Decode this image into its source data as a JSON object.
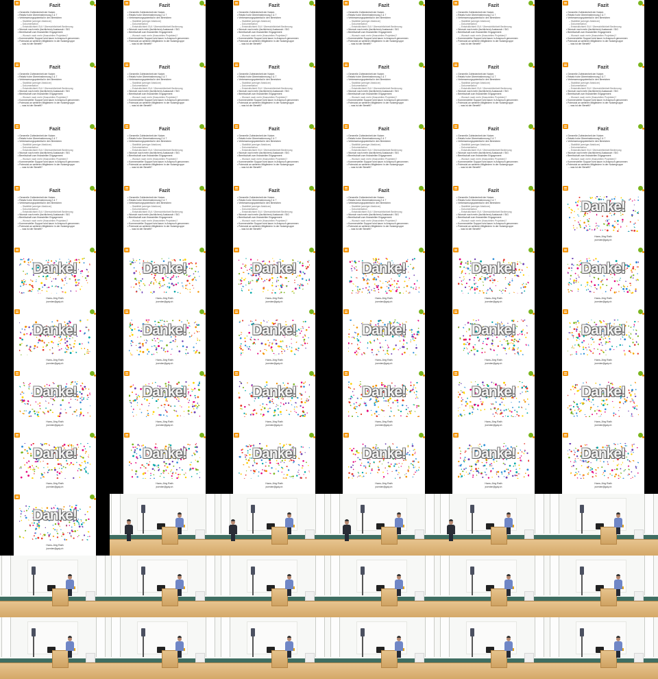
{
  "fazit_slide": {
    "title": "Fazit",
    "lines": [
      {
        "kind": "bullet",
        "text": "Generelle Zufriedenheit der Nutzer."
      },
      {
        "kind": "bullet",
        "text": "Relativ hohe Übereinstimmung 2 & 7"
      },
      {
        "kind": "bullet",
        "text": "Verbesserungspotential in den Bereichen"
      },
      {
        "kind": "sub",
        "text": "– Stabilität (weniger Abstürze)"
      },
      {
        "kind": "sub",
        "text": "– Dokumentation"
      },
      {
        "kind": "sub",
        "text": "– Entwicklichkeit GUI / Übersichtlichkeit Bedienung"
      },
      {
        "kind": "bullet",
        "text": "Wunsch nach mehr (fachlichem) Austausch / SIG"
      },
      {
        "kind": "bullet",
        "text": "Bereitschaft zum finanziellen Engagement"
      },
      {
        "kind": "sub",
        "text": "– Wunsch nach mehr (finanziellen Projekten)?"
      },
      {
        "kind": "bullet",
        "text": "Kommerzieller Support wird kaum in Anspruch genommen"
      },
      {
        "kind": "bullet",
        "text": "Potenzial an weiteren Mitgliedern in der Nutzergruppe"
      },
      {
        "kind": "arrow",
        "text": "→ was ist der Benefit?"
      }
    ]
  },
  "danke_slide": {
    "word": "Danke!",
    "name": "Hans-Jörg Rath",
    "email": "jroerden@gaiy.ch"
  },
  "colors": {
    "background": "#000000",
    "logo_orange": "#f39200",
    "logo_green": "#7ab51d",
    "confetti": [
      "#e63a2e",
      "#f39200",
      "#ffd200",
      "#2f8fd8",
      "#7ab51d",
      "#e4007c",
      "#6c3fb3",
      "#00a6a6"
    ]
  }
}
